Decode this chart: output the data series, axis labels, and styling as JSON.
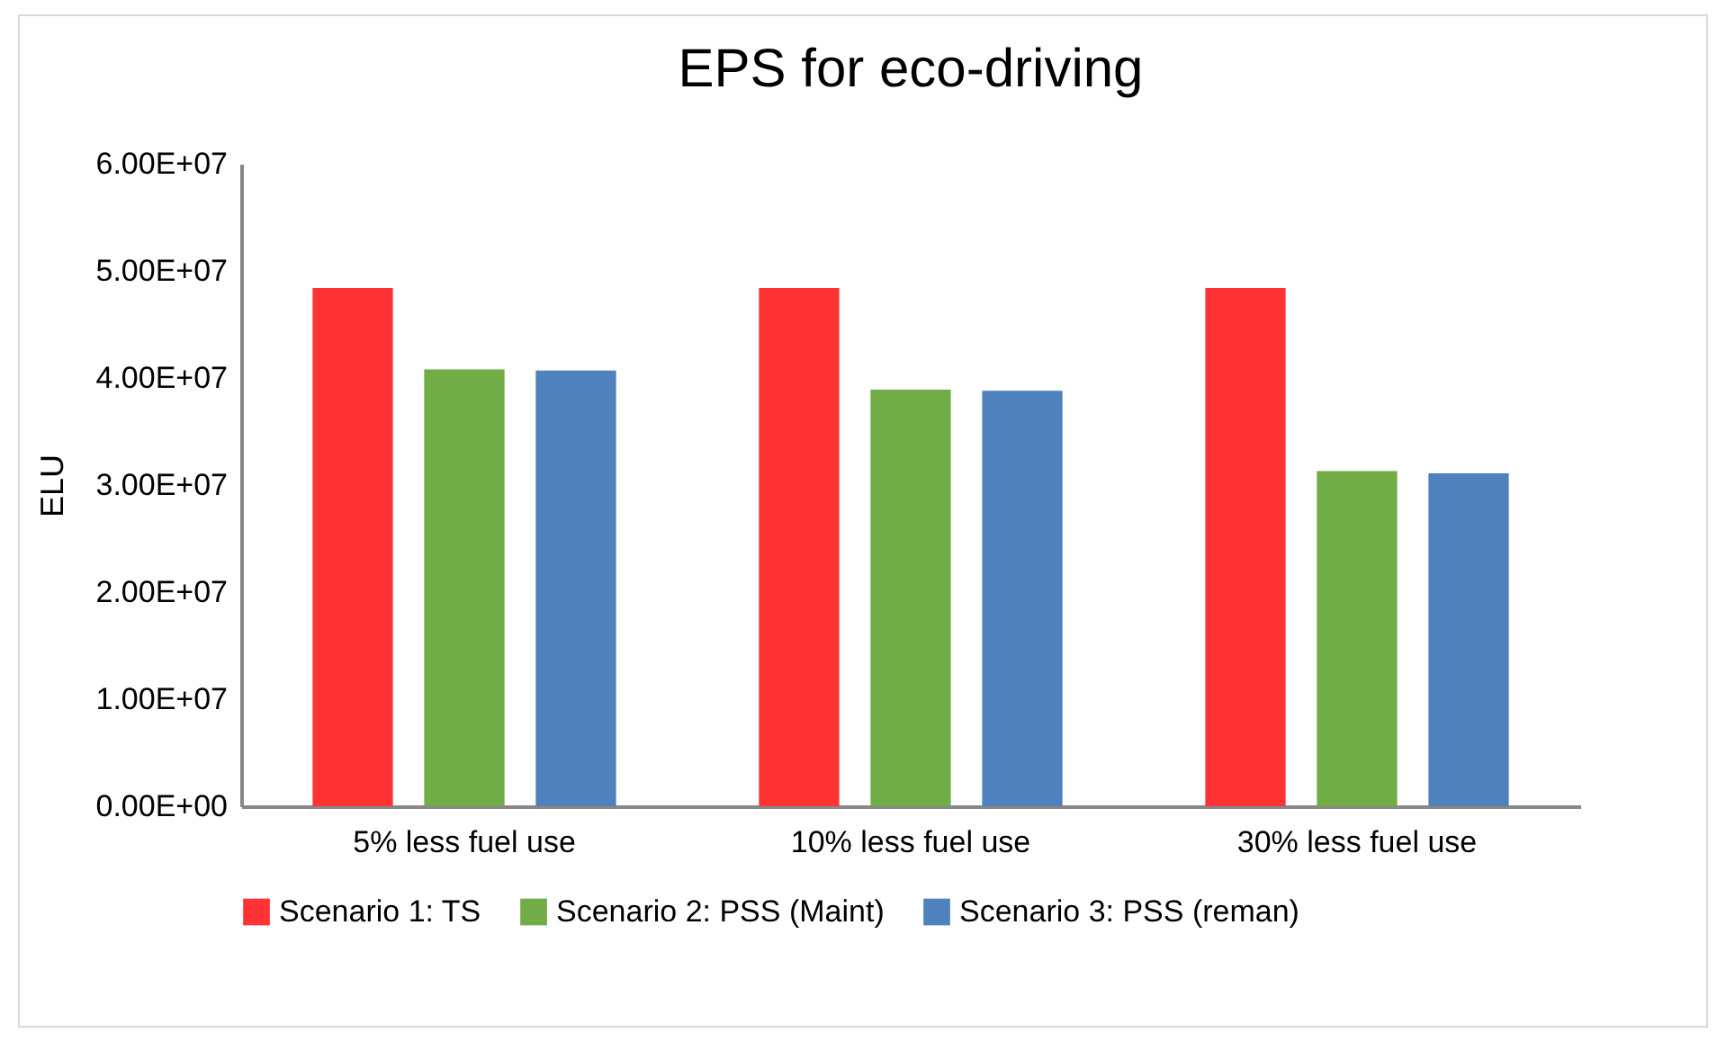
{
  "chart_data": {
    "type": "bar",
    "title": "EPS for eco-driving",
    "ylabel": "ELU",
    "categories": [
      "5% less fuel use",
      "10% less fuel use",
      "30% less fuel use"
    ],
    "series": [
      {
        "name": "Scenario 1: TS",
        "color": "#ff3333",
        "values": [
          48400000,
          48400000,
          48400000
        ]
      },
      {
        "name": "Scenario 2: PSS (Maint)",
        "color": "#70ad47",
        "values": [
          40800000,
          38900000,
          31300000
        ]
      },
      {
        "name": "Scenario 3: PSS (reman)",
        "color": "#4f81bd",
        "values": [
          40700000,
          38800000,
          31100000
        ]
      }
    ],
    "ylim": [
      0,
      60000000
    ],
    "yticks": [
      {
        "value": 0,
        "label": "0.00E+00"
      },
      {
        "value": 10000000,
        "label": "1.00E+07"
      },
      {
        "value": 20000000,
        "label": "2.00E+07"
      },
      {
        "value": 30000000,
        "label": "3.00E+07"
      },
      {
        "value": 40000000,
        "label": "4.00E+07"
      },
      {
        "value": 50000000,
        "label": "5.00E+07"
      },
      {
        "value": 60000000,
        "label": "6.00E+07"
      }
    ],
    "grid": false,
    "legend": "bottom"
  }
}
